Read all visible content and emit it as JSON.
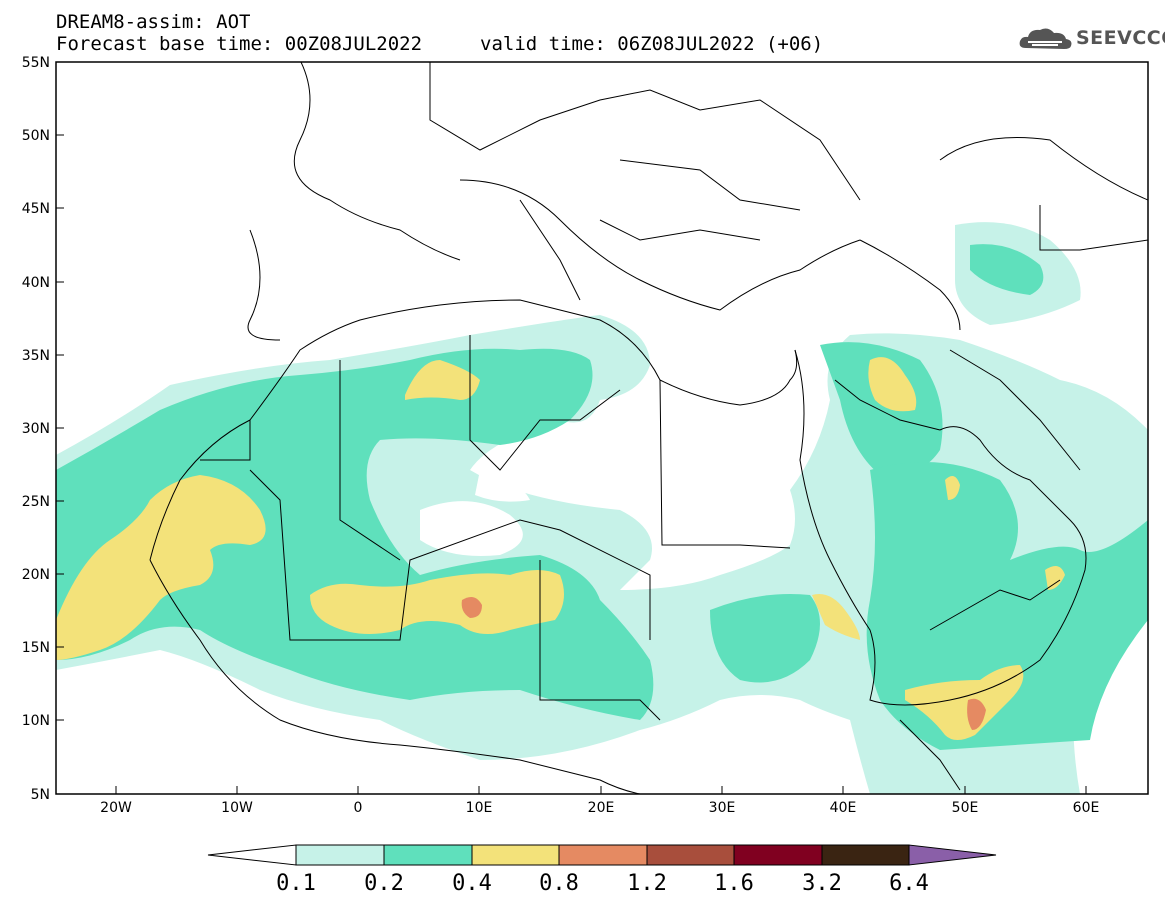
{
  "header": {
    "model_line": "DREAM8-assim: AOT",
    "base_time": "Forecast base time: 00Z08JUL2022",
    "valid_time": "valid time: 06Z08JUL2022 (+06)",
    "logo_text": "SEEVCCC"
  },
  "map": {
    "lat_labels": [
      "55N",
      "50N",
      "45N",
      "40N",
      "35N",
      "30N",
      "25N",
      "20N",
      "15N",
      "10N",
      "5N"
    ],
    "lon_labels": [
      "20W",
      "10W",
      "0",
      "10E",
      "20E",
      "30E",
      "40E",
      "50E",
      "60E"
    ],
    "extent": {
      "lon_min": -25,
      "lon_max": 65,
      "lat_min": 5,
      "lat_max": 55
    },
    "variable": "Aerosol optical thickness"
  },
  "colorbar": {
    "labels": [
      "0.1",
      "0.2",
      "0.4",
      "0.8",
      "1.2",
      "1.6",
      "3.2",
      "6.4"
    ],
    "colors": [
      "#c6f2e8",
      "#5fe0bc",
      "#f3e27a",
      "#e58a62",
      "#a84e3c",
      "#800020",
      "#3a2412",
      "#8a5fa8"
    ],
    "below_min_color": "#ffffff"
  }
}
